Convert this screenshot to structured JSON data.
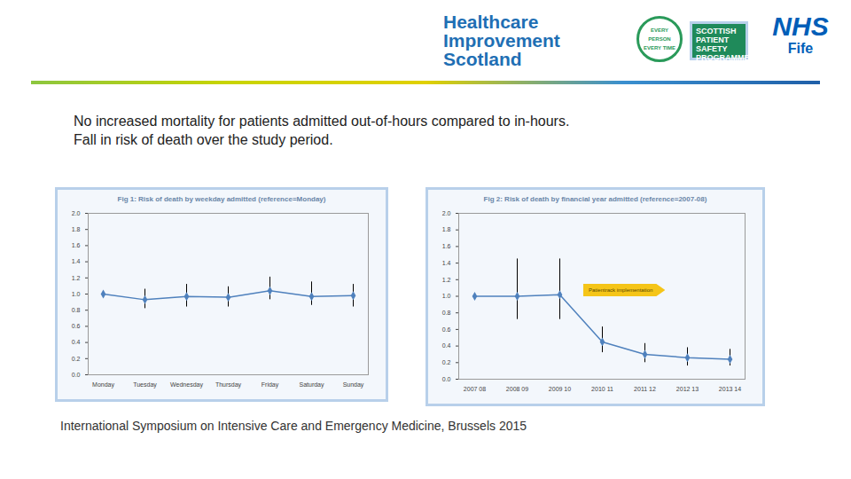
{
  "slide": {
    "logos": {
      "healthcare_improvement_scotland": [
        "Healthcare",
        "Improvement",
        "Scotland"
      ],
      "spsp_ring": [
        "EVERY PERSON",
        "EVERY TIME"
      ],
      "spsp_box": [
        "SCOTTISH",
        "PATIENT",
        "SAFETY",
        "PROGRAMME"
      ],
      "nhs": [
        "NHS",
        "Fife"
      ]
    },
    "headline": [
      "No increased mortality for patients admitted out-of-hours compared to in-hours.",
      "Fall in risk of death over the study period."
    ],
    "footer": "International Symposium on Intensive Care and Emergency Medicine, Brussels 2015"
  },
  "chart_data": [
    {
      "type": "line",
      "title": "Fig 1: Risk of death by weekday admitted (reference=Monday)",
      "categories": [
        "Monday",
        "Tuesday",
        "Wednesday",
        "Thursday",
        "Friday",
        "Saturday",
        "Sunday"
      ],
      "values": [
        1.0,
        0.93,
        0.97,
        0.96,
        1.04,
        0.97,
        0.98
      ],
      "error_bars": {
        "lower": [
          null,
          0.82,
          0.84,
          0.84,
          0.93,
          0.86,
          0.84
        ],
        "upper": [
          null,
          1.06,
          1.12,
          1.09,
          1.21,
          1.15,
          1.12
        ]
      },
      "color": "#4f81bd",
      "marker": "diamond",
      "ylim": [
        0,
        2
      ],
      "yticks": [
        0,
        0.2,
        0.4,
        0.6,
        0.8,
        1,
        1.2,
        1.4,
        1.6,
        1.8,
        2
      ]
    },
    {
      "type": "line",
      "title": "Fig 2: Risk of death by financial year admitted (reference=2007-08)",
      "categories": [
        "2007 08",
        "2008 09",
        "2009 10",
        "2010 11",
        "2011 12",
        "2012 13",
        "2013 14"
      ],
      "values": [
        1.0,
        1.0,
        1.02,
        0.45,
        0.3,
        0.26,
        0.24
      ],
      "error_bars": {
        "lower": [
          null,
          0.72,
          0.72,
          0.32,
          0.2,
          0.16,
          0.16
        ],
        "upper": [
          null,
          1.45,
          1.45,
          0.63,
          0.43,
          0.38,
          0.36
        ]
      },
      "color": "#4f81bd",
      "marker": "diamond",
      "annotations": [
        {
          "text": "Patientrack implementation"
        }
      ],
      "ylim": [
        0,
        2
      ],
      "yticks": [
        0,
        0.2,
        0.4,
        0.6,
        0.8,
        1,
        1.2,
        1.4,
        1.6,
        1.8,
        2
      ]
    }
  ]
}
